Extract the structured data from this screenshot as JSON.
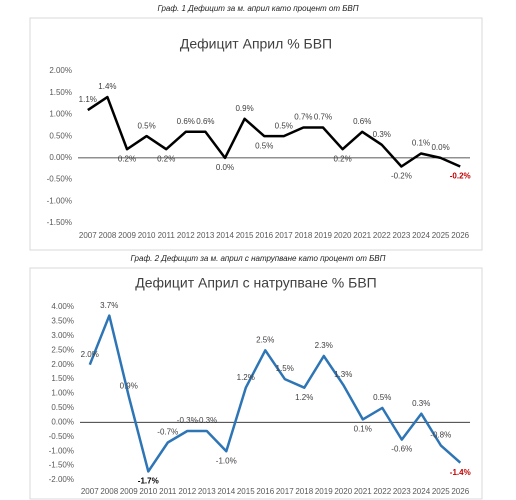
{
  "chart_data": [
    {
      "type": "line",
      "caption": "Граф. 1 Дефицит за м. април като процент от БВП",
      "title": "Дефицит Април % БВП",
      "categories": [
        "2007",
        "2008",
        "2009",
        "2010",
        "2011",
        "2012",
        "2013",
        "2014",
        "2015",
        "2016",
        "2017",
        "2018",
        "2019",
        "2020",
        "2021",
        "2022",
        "2023",
        "2024",
        "2025",
        "2026"
      ],
      "series": [
        {
          "name": "Дефицит Април % БВП",
          "color": "#000000",
          "values": [
            1.1,
            1.4,
            0.2,
            0.5,
            0.2,
            0.6,
            0.6,
            0.0,
            0.9,
            0.5,
            0.5,
            0.7,
            0.7,
            0.2,
            0.6,
            0.3,
            -0.2,
            0.1,
            0.0,
            -0.2
          ],
          "value_labels": [
            "1.1%",
            "1.4%",
            "0.2%",
            "0.5%",
            "0.2%",
            "0.6%",
            "0.6%",
            "0.0%",
            "0.9%",
            "0.5%",
            "0.5%",
            "0.7%",
            "0.7%",
            "0.2%",
            "0.6%",
            "0.3%",
            "-0.2%",
            "0.1%",
            "0.0%",
            "-0.2%"
          ],
          "value_label_colors": [
            "#404040",
            "#404040",
            "#404040",
            "#404040",
            "#404040",
            "#404040",
            "#404040",
            "#404040",
            "#404040",
            "#404040",
            "#404040",
            "#404040",
            "#404040",
            "#404040",
            "#404040",
            "#404040",
            "#404040",
            "#404040",
            "#404040",
            "#c00000"
          ]
        }
      ],
      "ylim": [
        -1.5,
        2.0
      ],
      "yticks": [
        {
          "value": -1.5,
          "label": "-1.50%"
        },
        {
          "value": -1.0,
          "label": "-1.00%"
        },
        {
          "value": -0.5,
          "label": "-0.50%"
        },
        {
          "value": 0,
          "label": "0.00%"
        },
        {
          "value": 0.5,
          "label": "0.50%"
        },
        {
          "value": 1.0,
          "label": "1.00%"
        },
        {
          "value": 1.5,
          "label": "1.50%"
        },
        {
          "value": 2.0,
          "label": "2.00%"
        }
      ],
      "grid": false
    },
    {
      "type": "line",
      "caption": "Граф. 2 Дефицит за м. април с натрупване като процент от БВП",
      "title": "Дефицит Април с натрупване % БВП",
      "categories": [
        "2007",
        "2008",
        "2009",
        "2010",
        "2011",
        "2012",
        "2013",
        "2014",
        "2015",
        "2016",
        "2017",
        "2018",
        "2019",
        "2020",
        "2021",
        "2022",
        "2023",
        "2024",
        "2025",
        "2026"
      ],
      "series": [
        {
          "name": "Дефицит Април с натрупване % БВП",
          "color": "#2e75b6",
          "values": [
            2.0,
            3.7,
            0.9,
            -1.7,
            -0.7,
            -0.3,
            -0.3,
            -1.0,
            1.2,
            2.5,
            1.5,
            1.2,
            2.3,
            1.3,
            0.1,
            0.5,
            -0.6,
            0.3,
            -0.8,
            -1.4
          ],
          "value_labels": [
            "2.0%",
            "3.7%",
            "0.9%",
            "-1.7%",
            "-0.7%",
            "-0.3%",
            "-0.3%",
            "-1.0%",
            "1.2%",
            "2.5%",
            "1.5%",
            "1.2%",
            "2.3%",
            "1.3%",
            "0.1%",
            "0.5%",
            "-0.6%",
            "0.3%",
            "-0.8%",
            "-1.4%"
          ],
          "value_label_colors": [
            "#404040",
            "#404040",
            "#404040",
            "#000000",
            "#404040",
            "#404040",
            "#404040",
            "#404040",
            "#404040",
            "#404040",
            "#404040",
            "#404040",
            "#404040",
            "#404040",
            "#404040",
            "#404040",
            "#404040",
            "#404040",
            "#404040",
            "#c00000"
          ]
        }
      ],
      "ylim": [
        -2.0,
        4.0
      ],
      "yticks": [
        {
          "value": -2.0,
          "label": "-2.00%"
        },
        {
          "value": -1.5,
          "label": "-1.50%"
        },
        {
          "value": -1.0,
          "label": "-1.00%"
        },
        {
          "value": -0.5,
          "label": "-0.50%"
        },
        {
          "value": 0,
          "label": "0.00%"
        },
        {
          "value": 0.5,
          "label": "0.50%"
        },
        {
          "value": 1.0,
          "label": "1.00%"
        },
        {
          "value": 1.5,
          "label": "1.50%"
        },
        {
          "value": 2.0,
          "label": "2.00%"
        },
        {
          "value": 2.5,
          "label": "2.50%"
        },
        {
          "value": 3.0,
          "label": "3.00%"
        },
        {
          "value": 3.5,
          "label": "3.50%"
        },
        {
          "value": 4.0,
          "label": "4.00%"
        }
      ],
      "grid": false
    }
  ]
}
